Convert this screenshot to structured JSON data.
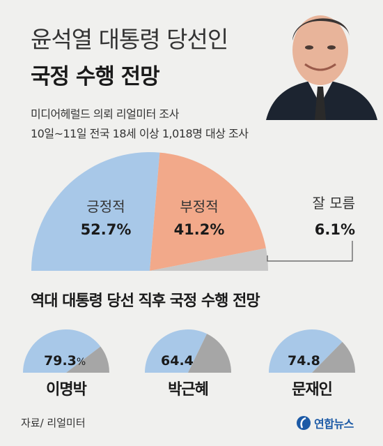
{
  "header": {
    "title_line1": "윤석열 대통령 당선인",
    "title_line2": "국정 수행 전망",
    "survey_line1": "미디어헤럴드 의뢰 리얼미터 조사",
    "survey_line2": "10일~11일 전국 18세 이상 1,018명 대상 조사"
  },
  "section_title": "역대 대통령 당선 직후 국정 수행 전망",
  "footer": {
    "source": "자료/ 리얼미터",
    "brand": "연합뉴스"
  },
  "colors": {
    "positive": "#a8c8e8",
    "negative": "#f2a98a",
    "unknown": "#c8c8c8",
    "small_rest": "#a6a6a6",
    "brand": "#1c5aa6"
  },
  "chart_data": [
    {
      "type": "pie",
      "style": "semicircle",
      "title": "",
      "categories": [
        "긍정적",
        "부정적",
        "잘 모름"
      ],
      "values": [
        52.7,
        41.2,
        6.1
      ],
      "value_labels": [
        "52.7%",
        "41.2%",
        "6.1%"
      ]
    },
    {
      "type": "pie",
      "style": "semicircle-series",
      "title": "역대 대통령 당선 직후 국정 수행 전망",
      "series": [
        {
          "name": "이명박",
          "value": 79.3,
          "value_label": "79.3",
          "unit": "%"
        },
        {
          "name": "박근혜",
          "value": 64.4,
          "value_label": "64.4",
          "unit": ""
        },
        {
          "name": "문재인",
          "value": 74.8,
          "value_label": "74.8",
          "unit": ""
        }
      ]
    }
  ]
}
